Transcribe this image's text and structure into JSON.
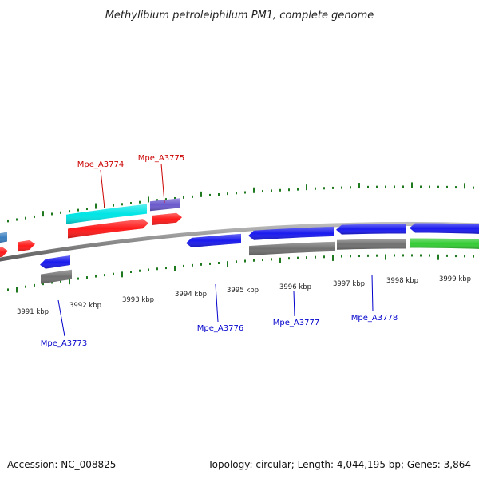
{
  "title": "Methylibium petroleiphilum PM1, complete genome",
  "footer": {
    "accession": "Accession: NC_008825",
    "topology": "Topology: circular; Length: 4,044,195 bp; Genes: 3,864"
  },
  "colors": {
    "backbone": "#8a8a8a",
    "tick": "#1f7a1f",
    "forward_label": "#cc0000",
    "reverse_label": "#0000cc"
  },
  "ticks": {
    "inner_labels": [
      "3991 kbp",
      "3992 kbp",
      "3993 kbp",
      "3994 kbp",
      "3995 kbp",
      "3996 kbp",
      "3997 kbp",
      "3998 kbp",
      "3999 kbp"
    ]
  },
  "gene_labels": [
    {
      "text": "Mpe_A3774",
      "strand": "forward"
    },
    {
      "text": "Mpe_A3775",
      "strand": "forward"
    },
    {
      "text": "Mpe_A3773",
      "strand": "reverse"
    },
    {
      "text": "Mpe_A3776",
      "strand": "reverse"
    },
    {
      "text": "Mpe_A3777",
      "strand": "reverse"
    },
    {
      "text": "Mpe_A3778",
      "strand": "reverse"
    }
  ],
  "features": [
    {
      "name": "partial-forward-gene-left",
      "color": "#3a7fc0",
      "track": "outer-forward"
    },
    {
      "name": "partial-red-gene-left",
      "color": "#ff1a1a",
      "track": "forward"
    },
    {
      "name": "red-gene-small",
      "color": "#ff1a1a",
      "track": "forward"
    },
    {
      "name": "cyan-gene",
      "color": "#00e5e5",
      "track": "outer-forward"
    },
    {
      "name": "red-gene-mpe-a3774",
      "color": "#ff1a1a",
      "track": "forward"
    },
    {
      "name": "slateblue-gene",
      "color": "#6a5acd",
      "track": "outer-forward"
    },
    {
      "name": "red-gene-mpe-a3775",
      "color": "#ff1a1a",
      "track": "forward"
    },
    {
      "name": "blue-gene-mpe-a3773",
      "color": "#1a1aee",
      "track": "reverse"
    },
    {
      "name": "grey-gene-mpe-a3773",
      "color": "#707070",
      "track": "outer-reverse"
    },
    {
      "name": "blue-gene-mpe-a3776",
      "color": "#1a1aee",
      "track": "reverse"
    },
    {
      "name": "blue-gene-mpe-a3777",
      "color": "#1a1aee",
      "track": "reverse"
    },
    {
      "name": "grey-gene-mpe-a3777",
      "color": "#707070",
      "track": "outer-reverse"
    },
    {
      "name": "blue-gene-mpe-a3778",
      "color": "#1a1aee",
      "track": "reverse"
    },
    {
      "name": "grey-gene-mpe-a3778",
      "color": "#707070",
      "track": "outer-reverse"
    },
    {
      "name": "blue-gene-right",
      "color": "#1a1aee",
      "track": "reverse"
    },
    {
      "name": "green-gene-right",
      "color": "#33cc33",
      "track": "outer-reverse"
    }
  ]
}
